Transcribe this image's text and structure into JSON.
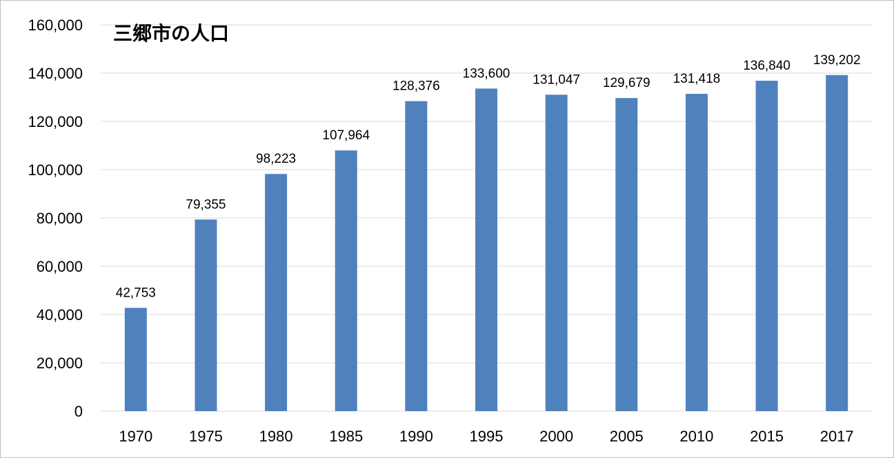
{
  "chart_data": {
    "type": "bar",
    "title": "三郷市の人口",
    "xlabel": "",
    "ylabel": "",
    "categories": [
      "1970",
      "1975",
      "1980",
      "1985",
      "1990",
      "1995",
      "2000",
      "2005",
      "2010",
      "2015",
      "2017"
    ],
    "values": [
      42753,
      79355,
      98223,
      107964,
      128376,
      133600,
      131047,
      129679,
      131418,
      136840,
      139202
    ],
    "value_labels": [
      "42,753",
      "79,355",
      "98,223",
      "107,964",
      "128,376",
      "133,600",
      "131,047",
      "129,679",
      "131,418",
      "136,840",
      "139,202"
    ],
    "ylim": [
      0,
      160000
    ],
    "yticks": [
      0,
      20000,
      40000,
      60000,
      80000,
      100000,
      120000,
      140000,
      160000
    ],
    "ytick_labels": [
      "0",
      "20,000",
      "40,000",
      "60,000",
      "80,000",
      "100,000",
      "120,000",
      "140,000",
      "160,000"
    ],
    "grid": true,
    "legend": "none",
    "bar_color": "#4f81bd",
    "grid_color": "#d9d9d9"
  }
}
